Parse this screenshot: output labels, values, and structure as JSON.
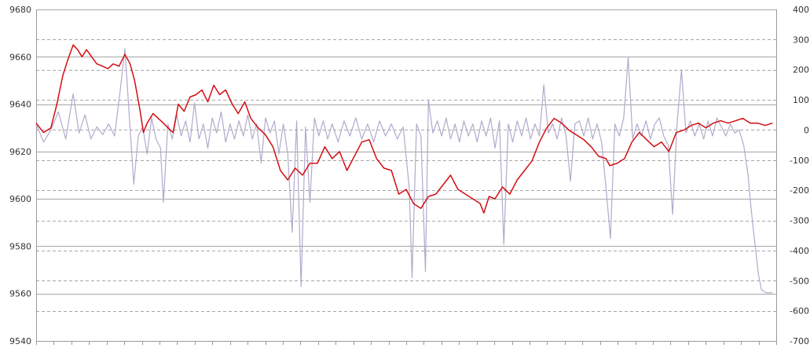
{
  "chart_data": {
    "type": "line",
    "title": "",
    "xlabel": "",
    "ylabel": "",
    "y2label": "",
    "grid": true,
    "legend": "none",
    "ylim": [
      9540,
      9680
    ],
    "y2lim": [
      -700,
      400
    ],
    "y_ticks": [
      9540,
      9560,
      9580,
      9600,
      9620,
      9640,
      9660,
      9680
    ],
    "y2_ticks": [
      -700,
      -600,
      -500,
      -400,
      -300,
      -200,
      -100,
      0,
      100,
      200,
      300,
      400
    ],
    "colors": {
      "primary": "#d40d12",
      "secondary": "#b3a9cc",
      "major_grid": "#a6a6a6",
      "minor_grid": "#a6a6a6",
      "axis": "#9a9a9a"
    },
    "series": [
      {
        "axis": "left",
        "color": "#d40d12",
        "points": [
          [
            0.0,
            9632
          ],
          [
            0.01,
            9628
          ],
          [
            0.02,
            9630
          ],
          [
            0.028,
            9640
          ],
          [
            0.036,
            9652
          ],
          [
            0.042,
            9658
          ],
          [
            0.05,
            9665
          ],
          [
            0.056,
            9663
          ],
          [
            0.062,
            9660
          ],
          [
            0.068,
            9663
          ],
          [
            0.075,
            9660
          ],
          [
            0.082,
            9657
          ],
          [
            0.09,
            9656
          ],
          [
            0.097,
            9655
          ],
          [
            0.104,
            9657
          ],
          [
            0.112,
            9656
          ],
          [
            0.12,
            9661
          ],
          [
            0.127,
            9657
          ],
          [
            0.133,
            9650
          ],
          [
            0.14,
            9638
          ],
          [
            0.145,
            9628
          ],
          [
            0.15,
            9632
          ],
          [
            0.158,
            9636
          ],
          [
            0.165,
            9634
          ],
          [
            0.172,
            9632
          ],
          [
            0.178,
            9630
          ],
          [
            0.185,
            9628
          ],
          [
            0.192,
            9640
          ],
          [
            0.2,
            9637
          ],
          [
            0.208,
            9643
          ],
          [
            0.216,
            9644
          ],
          [
            0.224,
            9646
          ],
          [
            0.232,
            9641
          ],
          [
            0.24,
            9648
          ],
          [
            0.248,
            9644
          ],
          [
            0.256,
            9646
          ],
          [
            0.265,
            9640
          ],
          [
            0.273,
            9636
          ],
          [
            0.282,
            9641
          ],
          [
            0.29,
            9634
          ],
          [
            0.3,
            9630
          ],
          [
            0.31,
            9627
          ],
          [
            0.32,
            9622
          ],
          [
            0.33,
            9612
          ],
          [
            0.34,
            9608
          ],
          [
            0.35,
            9613
          ],
          [
            0.36,
            9610
          ],
          [
            0.37,
            9615
          ],
          [
            0.38,
            9615
          ],
          [
            0.39,
            9622
          ],
          [
            0.4,
            9617
          ],
          [
            0.41,
            9620
          ],
          [
            0.42,
            9612
          ],
          [
            0.43,
            9618
          ],
          [
            0.44,
            9624
          ],
          [
            0.45,
            9625
          ],
          [
            0.46,
            9617
          ],
          [
            0.47,
            9613
          ],
          [
            0.48,
            9612
          ],
          [
            0.49,
            9602
          ],
          [
            0.5,
            9604
          ],
          [
            0.51,
            9598
          ],
          [
            0.52,
            9596
          ],
          [
            0.53,
            9601
          ],
          [
            0.54,
            9602
          ],
          [
            0.55,
            9606
          ],
          [
            0.56,
            9610
          ],
          [
            0.57,
            9604
          ],
          [
            0.58,
            9602
          ],
          [
            0.59,
            9600
          ],
          [
            0.6,
            9598
          ],
          [
            0.605,
            9594
          ],
          [
            0.612,
            9601
          ],
          [
            0.62,
            9600
          ],
          [
            0.63,
            9605
          ],
          [
            0.64,
            9602
          ],
          [
            0.65,
            9608
          ],
          [
            0.66,
            9612
          ],
          [
            0.67,
            9616
          ],
          [
            0.68,
            9624
          ],
          [
            0.69,
            9630
          ],
          [
            0.7,
            9634
          ],
          [
            0.71,
            9632
          ],
          [
            0.72,
            9629
          ],
          [
            0.73,
            9627
          ],
          [
            0.74,
            9625
          ],
          [
            0.75,
            9622
          ],
          [
            0.76,
            9618
          ],
          [
            0.77,
            9617
          ],
          [
            0.775,
            9614
          ],
          [
            0.785,
            9615
          ],
          [
            0.795,
            9617
          ],
          [
            0.805,
            9624
          ],
          [
            0.815,
            9628
          ],
          [
            0.825,
            9625
          ],
          [
            0.835,
            9622
          ],
          [
            0.845,
            9624
          ],
          [
            0.855,
            9620
          ],
          [
            0.865,
            9628
          ],
          [
            0.875,
            9629
          ],
          [
            0.885,
            9631
          ],
          [
            0.895,
            9632
          ],
          [
            0.905,
            9630
          ],
          [
            0.915,
            9632
          ],
          [
            0.925,
            9633
          ],
          [
            0.935,
            9632
          ],
          [
            0.945,
            9633
          ],
          [
            0.955,
            9634
          ],
          [
            0.965,
            9632
          ],
          [
            0.975,
            9632
          ],
          [
            0.985,
            9631
          ],
          [
            0.995,
            9632
          ]
        ]
      },
      {
        "axis": "right",
        "color": "#b3a9cc",
        "points": [
          [
            0.0,
            20
          ],
          [
            0.01,
            -40
          ],
          [
            0.02,
            0
          ],
          [
            0.03,
            60
          ],
          [
            0.04,
            -30
          ],
          [
            0.05,
            120
          ],
          [
            0.058,
            -10
          ],
          [
            0.066,
            50
          ],
          [
            0.074,
            -30
          ],
          [
            0.082,
            10
          ],
          [
            0.09,
            -15
          ],
          [
            0.098,
            20
          ],
          [
            0.106,
            -20
          ],
          [
            0.114,
            140
          ],
          [
            0.12,
            270
          ],
          [
            0.126,
            40
          ],
          [
            0.132,
            -180
          ],
          [
            0.138,
            -20
          ],
          [
            0.144,
            10
          ],
          [
            0.15,
            -80
          ],
          [
            0.156,
            40
          ],
          [
            0.162,
            -30
          ],
          [
            0.168,
            -60
          ],
          [
            0.172,
            -240
          ],
          [
            0.178,
            20
          ],
          [
            0.184,
            -30
          ],
          [
            0.19,
            50
          ],
          [
            0.196,
            -20
          ],
          [
            0.202,
            30
          ],
          [
            0.208,
            -40
          ],
          [
            0.214,
            90
          ],
          [
            0.22,
            -30
          ],
          [
            0.226,
            20
          ],
          [
            0.232,
            -60
          ],
          [
            0.238,
            40
          ],
          [
            0.244,
            -10
          ],
          [
            0.25,
            60
          ],
          [
            0.256,
            -40
          ],
          [
            0.262,
            20
          ],
          [
            0.268,
            -30
          ],
          [
            0.274,
            30
          ],
          [
            0.28,
            -20
          ],
          [
            0.286,
            50
          ],
          [
            0.292,
            -30
          ],
          [
            0.298,
            20
          ],
          [
            0.304,
            -110
          ],
          [
            0.31,
            40
          ],
          [
            0.316,
            -10
          ],
          [
            0.322,
            30
          ],
          [
            0.328,
            -80
          ],
          [
            0.334,
            20
          ],
          [
            0.34,
            -80
          ],
          [
            0.346,
            -340
          ],
          [
            0.352,
            30
          ],
          [
            0.358,
            -520
          ],
          [
            0.364,
            10
          ],
          [
            0.37,
            -240
          ],
          [
            0.376,
            40
          ],
          [
            0.382,
            -20
          ],
          [
            0.388,
            30
          ],
          [
            0.394,
            -30
          ],
          [
            0.4,
            20
          ],
          [
            0.408,
            -40
          ],
          [
            0.416,
            30
          ],
          [
            0.424,
            -20
          ],
          [
            0.432,
            40
          ],
          [
            0.44,
            -30
          ],
          [
            0.448,
            20
          ],
          [
            0.456,
            -40
          ],
          [
            0.464,
            30
          ],
          [
            0.472,
            -20
          ],
          [
            0.48,
            20
          ],
          [
            0.488,
            -30
          ],
          [
            0.496,
            10
          ],
          [
            0.504,
            -190
          ],
          [
            0.508,
            -490
          ],
          [
            0.514,
            20
          ],
          [
            0.52,
            -20
          ],
          [
            0.526,
            -470
          ],
          [
            0.53,
            100
          ],
          [
            0.536,
            -10
          ],
          [
            0.542,
            30
          ],
          [
            0.548,
            -20
          ],
          [
            0.554,
            40
          ],
          [
            0.56,
            -30
          ],
          [
            0.566,
            20
          ],
          [
            0.572,
            -40
          ],
          [
            0.578,
            30
          ],
          [
            0.584,
            -20
          ],
          [
            0.59,
            20
          ],
          [
            0.596,
            -40
          ],
          [
            0.602,
            30
          ],
          [
            0.608,
            -20
          ],
          [
            0.614,
            40
          ],
          [
            0.62,
            -60
          ],
          [
            0.626,
            30
          ],
          [
            0.632,
            -380
          ],
          [
            0.638,
            20
          ],
          [
            0.644,
            -40
          ],
          [
            0.65,
            30
          ],
          [
            0.656,
            -20
          ],
          [
            0.662,
            40
          ],
          [
            0.668,
            -30
          ],
          [
            0.674,
            20
          ],
          [
            0.68,
            -20
          ],
          [
            0.686,
            150
          ],
          [
            0.692,
            -10
          ],
          [
            0.698,
            20
          ],
          [
            0.704,
            -30
          ],
          [
            0.71,
            40
          ],
          [
            0.716,
            -20
          ],
          [
            0.722,
            -170
          ],
          [
            0.728,
            20
          ],
          [
            0.734,
            30
          ],
          [
            0.74,
            -20
          ],
          [
            0.746,
            40
          ],
          [
            0.752,
            -30
          ],
          [
            0.758,
            20
          ],
          [
            0.764,
            -40
          ],
          [
            0.77,
            -190
          ],
          [
            0.776,
            -360
          ],
          [
            0.782,
            20
          ],
          [
            0.788,
            -20
          ],
          [
            0.794,
            40
          ],
          [
            0.8,
            240
          ],
          [
            0.806,
            -30
          ],
          [
            0.812,
            20
          ],
          [
            0.818,
            -20
          ],
          [
            0.824,
            30
          ],
          [
            0.83,
            -30
          ],
          [
            0.836,
            20
          ],
          [
            0.842,
            40
          ],
          [
            0.848,
            -20
          ],
          [
            0.854,
            -50
          ],
          [
            0.86,
            -280
          ],
          [
            0.866,
            20
          ],
          [
            0.872,
            200
          ],
          [
            0.878,
            -10
          ],
          [
            0.884,
            30
          ],
          [
            0.89,
            -20
          ],
          [
            0.896,
            20
          ],
          [
            0.902,
            -30
          ],
          [
            0.908,
            30
          ],
          [
            0.914,
            -20
          ],
          [
            0.92,
            40
          ],
          [
            0.926,
            10
          ],
          [
            0.932,
            -20
          ],
          [
            0.938,
            20
          ],
          [
            0.944,
            -10
          ],
          [
            0.95,
            0
          ],
          [
            0.956,
            -50
          ],
          [
            0.962,
            -150
          ],
          [
            0.966,
            -260
          ],
          [
            0.97,
            -350
          ],
          [
            0.976,
            -480
          ],
          [
            0.98,
            -530
          ],
          [
            0.986,
            -540
          ],
          [
            0.995,
            -540
          ]
        ]
      }
    ]
  }
}
